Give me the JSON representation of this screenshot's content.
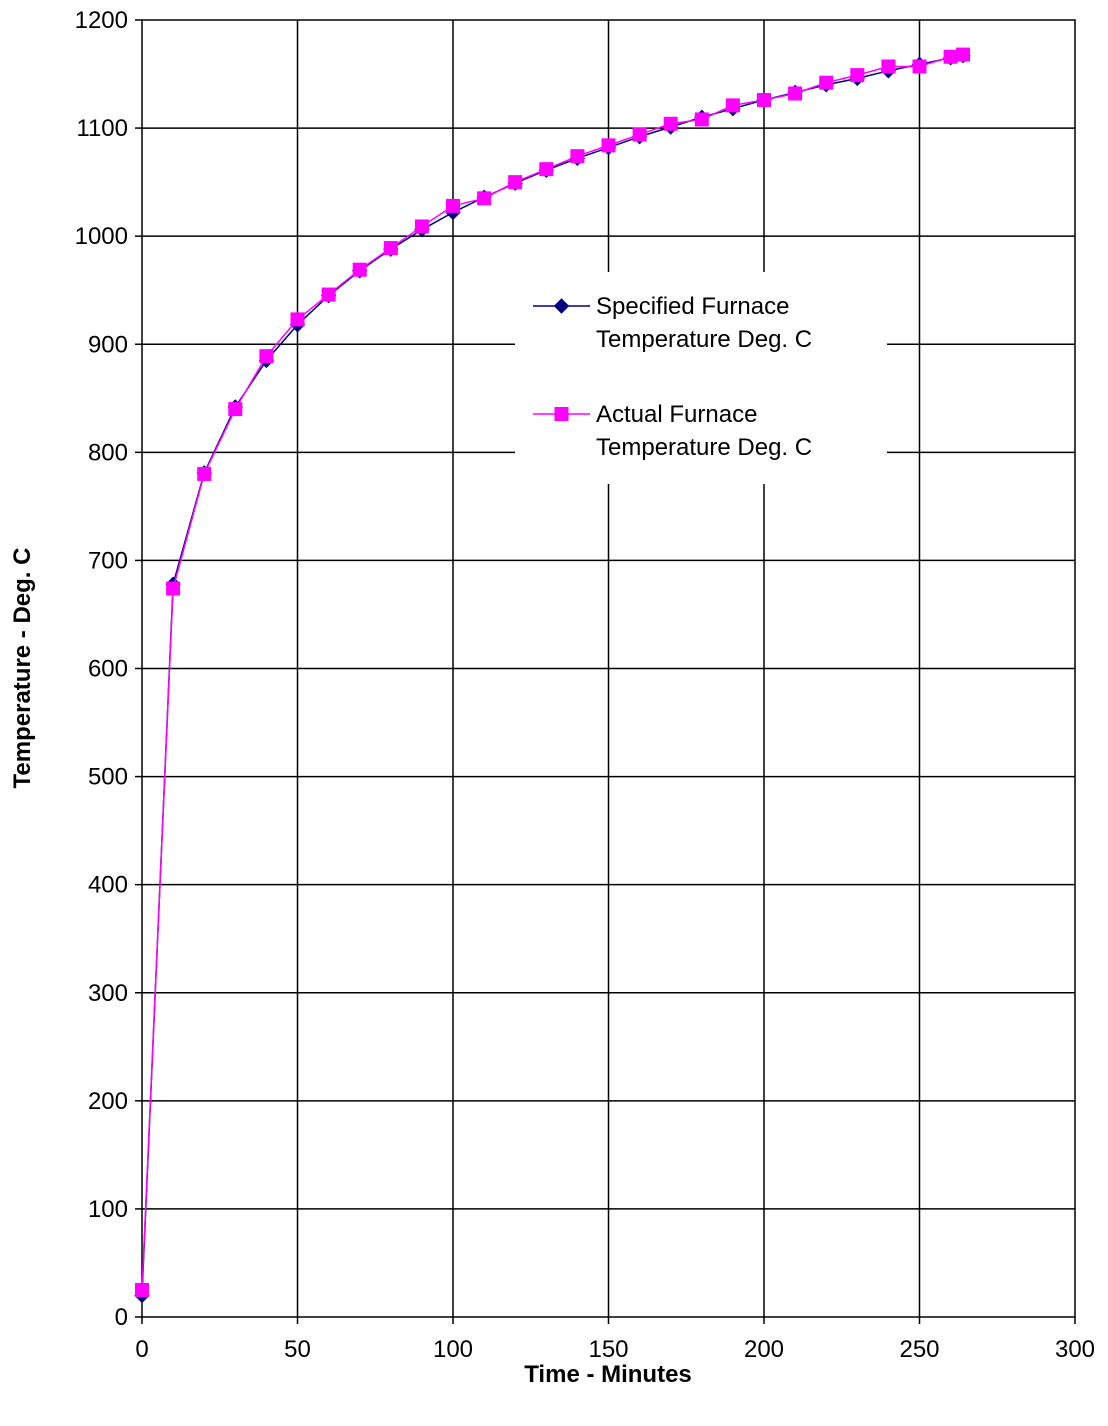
{
  "chart_data": {
    "type": "line",
    "title": "",
    "xlabel": "Time - Minutes",
    "ylabel": "Temperature - Deg. C",
    "xlim": [
      0,
      300
    ],
    "ylim": [
      0,
      1200
    ],
    "x_ticks": [
      0,
      50,
      100,
      150,
      200,
      250,
      300
    ],
    "y_ticks": [
      0,
      100,
      200,
      300,
      400,
      500,
      600,
      700,
      800,
      900,
      1000,
      1100,
      1200
    ],
    "grid": true,
    "legend_position": "right",
    "series": [
      {
        "name": "Specified Furnace Temperature Deg. C",
        "legend_lines": [
          "Specified Furnace",
          "Temperature Deg. C"
        ],
        "color": "#000080",
        "marker": "diamond",
        "x": [
          0,
          10,
          20,
          30,
          40,
          50,
          60,
          70,
          80,
          90,
          100,
          110,
          120,
          130,
          140,
          150,
          160,
          170,
          180,
          190,
          200,
          210,
          220,
          230,
          240,
          250,
          260,
          264
        ],
        "y": [
          20,
          678,
          781,
          842,
          885,
          918,
          945,
          968,
          988,
          1006,
          1022,
          1036,
          1049,
          1061,
          1072,
          1082,
          1092,
          1101,
          1110,
          1118,
          1126,
          1133,
          1140,
          1146,
          1153,
          1159,
          1165,
          1167
        ]
      },
      {
        "name": "Actual Furnace Temperature Deg. C",
        "legend_lines": [
          "Actual Furnace",
          "Temperature Deg. C"
        ],
        "color": "#FF00FF",
        "marker": "square",
        "x": [
          0,
          10,
          20,
          30,
          40,
          50,
          60,
          70,
          80,
          90,
          100,
          110,
          120,
          130,
          140,
          150,
          160,
          170,
          180,
          190,
          200,
          210,
          220,
          230,
          240,
          250,
          260,
          264
        ],
        "y": [
          25,
          674,
          780,
          840,
          889,
          923,
          946,
          969,
          989,
          1009,
          1028,
          1035,
          1050,
          1062,
          1074,
          1084,
          1094,
          1104,
          1108,
          1121,
          1126,
          1132,
          1142,
          1149,
          1157,
          1157,
          1166,
          1168
        ]
      }
    ]
  }
}
